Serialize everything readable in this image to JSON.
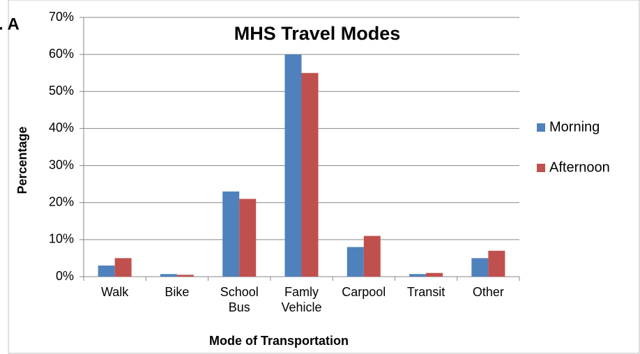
{
  "chart_data": {
    "type": "bar",
    "title": "MHS Travel Modes",
    "annotation": ". A",
    "x_label": "Mode of Transportation",
    "y_label": "Percentage",
    "categories": [
      [
        "Walk"
      ],
      [
        "Bike"
      ],
      [
        "School",
        "Bus"
      ],
      [
        "Famly",
        "Vehicle"
      ],
      [
        "Carpool"
      ],
      [
        "Transit"
      ],
      [
        "Other"
      ]
    ],
    "series": [
      {
        "name": "Morning",
        "color": "#4f81bd",
        "values": [
          3,
          0.7,
          23,
          60,
          8,
          0.7,
          5
        ]
      },
      {
        "name": "Afternoon",
        "color": "#c0504d",
        "values": [
          5,
          0.5,
          21,
          55,
          11,
          1,
          7
        ]
      }
    ],
    "ylim": [
      0,
      70
    ],
    "yticks": [
      {
        "value": 0,
        "label": "0%"
      },
      {
        "value": 10,
        "label": "10%"
      },
      {
        "value": 20,
        "label": "20%"
      },
      {
        "value": 30,
        "label": "30%"
      },
      {
        "value": 40,
        "label": "40%"
      },
      {
        "value": 50,
        "label": "50%"
      },
      {
        "value": 60,
        "label": "60%"
      },
      {
        "value": 70,
        "label": "70%"
      }
    ],
    "grid": true,
    "legend": "right"
  }
}
